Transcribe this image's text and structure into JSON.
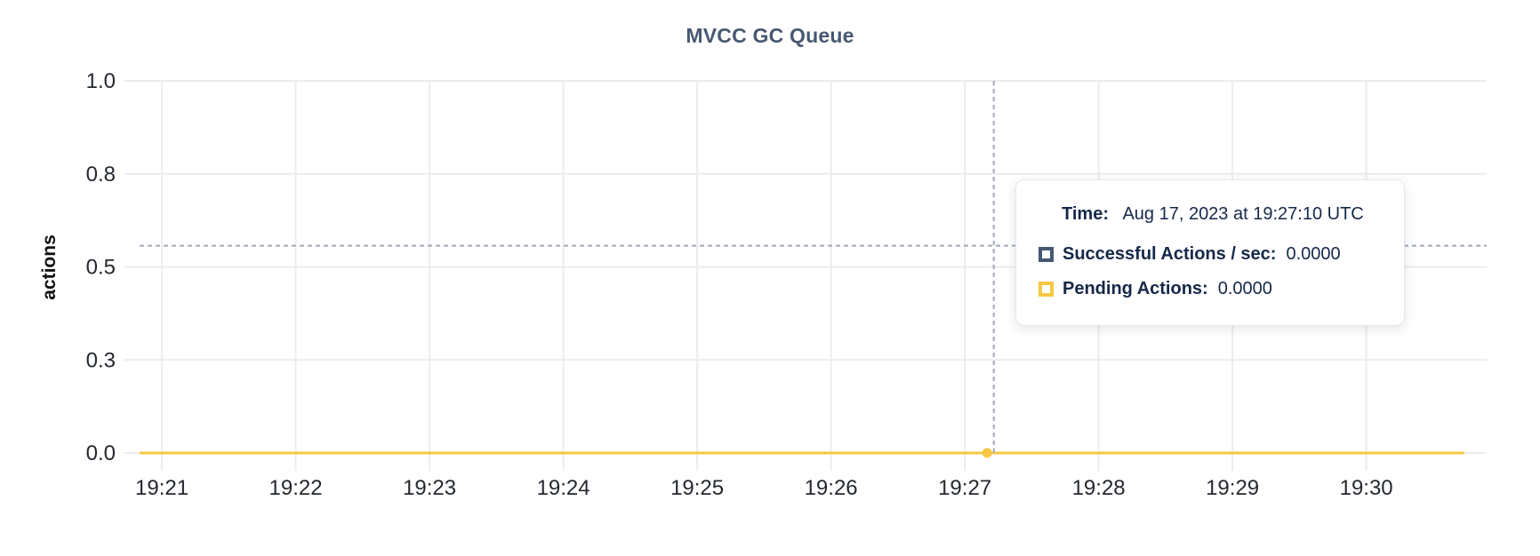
{
  "title": "MVCC GC Queue",
  "axes": {
    "y_label": "actions"
  },
  "colors": {
    "title": "#475872",
    "tooltip_text": "#152849",
    "tick_text": "#24292F",
    "grid": "#ECECEC",
    "crosshair": "#9EA8B8",
    "successful_series": "#475872",
    "pending_series": "#F6C843"
  },
  "tooltip": {
    "time_label": "Time:",
    "time_value": "Aug 17, 2023 at 19:27:10 UTC",
    "rows": [
      {
        "label": "Successful Actions / sec:",
        "value": "0.0000",
        "color": "#475872",
        "swatch": "successful-series-swatch"
      },
      {
        "label": "Pending Actions:",
        "value": "0.0000",
        "color": "#F6C843",
        "swatch": "pending-series-swatch"
      }
    ]
  },
  "chart_data": {
    "type": "line",
    "title": "MVCC GC Queue",
    "xlabel": "",
    "ylabel": "actions",
    "ylim": [
      0,
      1.0
    ],
    "grid": true,
    "x_domain": [
      "19:20:50",
      "19:30:44"
    ],
    "x_ticks": [
      "19:21",
      "19:22",
      "19:23",
      "19:24",
      "19:25",
      "19:26",
      "19:27",
      "19:28",
      "19:29",
      "19:30"
    ],
    "y_ticks": [
      {
        "value": 1.0,
        "label": "1.0"
      },
      {
        "value": 0.75,
        "label": "0.8"
      },
      {
        "value": 0.5,
        "label": "0.5"
      },
      {
        "value": 0.25,
        "label": "0.3"
      },
      {
        "value": 0.0,
        "label": "0.0"
      }
    ],
    "series": [
      {
        "name": "Successful Actions / sec",
        "color": "#475872",
        "points": [
          {
            "t": "19:20:50",
            "v": 0
          },
          {
            "t": "19:30:44",
            "v": 0
          }
        ]
      },
      {
        "name": "Pending Actions",
        "color": "#F6C843",
        "points": [
          {
            "t": "19:20:50",
            "v": 0
          },
          {
            "t": "19:30:44",
            "v": 0
          }
        ]
      }
    ],
    "hover": {
      "snap_time": "19:27:10",
      "snap_value": 0,
      "mouse_time": "19:27:13",
      "mouse_value": 0.557
    }
  }
}
